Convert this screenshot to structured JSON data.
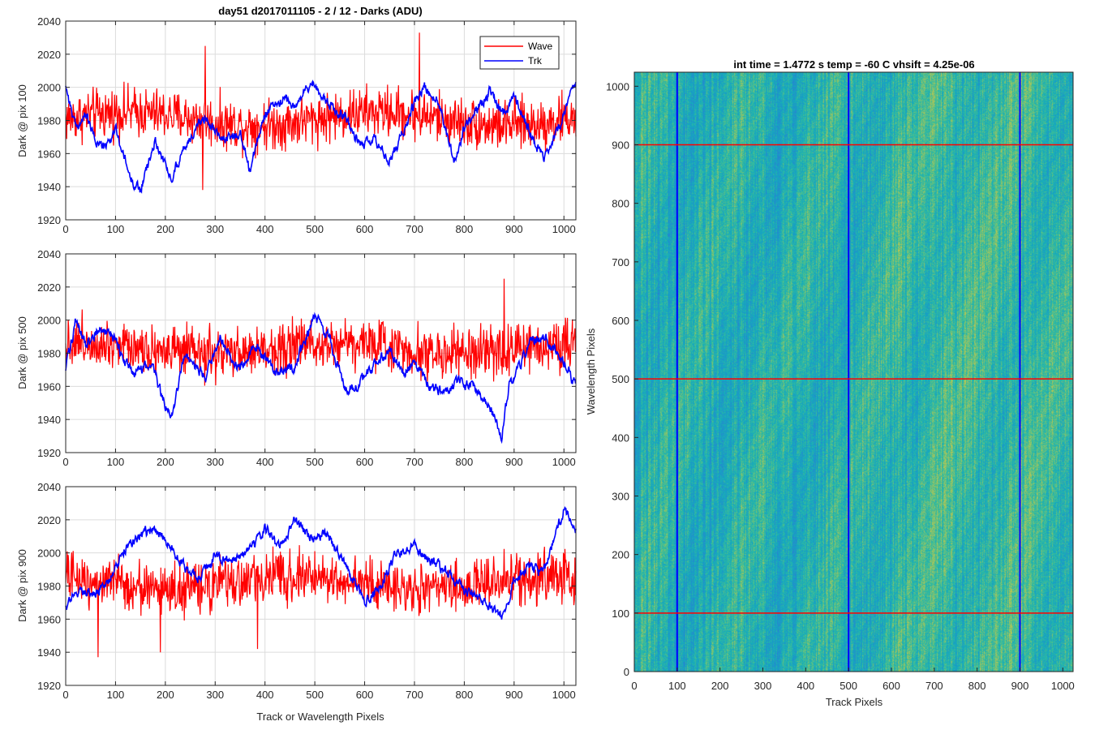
{
  "chart_data": [
    {
      "type": "line",
      "title": "day51 d2017011105 - 2 / 12 - Darks (ADU)",
      "ylabel": "Dark @ pix 100",
      "xlabel": "",
      "xlim": [
        0,
        1024
      ],
      "ylim": [
        1920,
        2040
      ],
      "xticks": [
        0,
        100,
        200,
        300,
        400,
        500,
        600,
        700,
        800,
        900,
        1000
      ],
      "yticks": [
        1920,
        1940,
        1960,
        1980,
        2000,
        2020,
        2040
      ],
      "grid": true,
      "legend": {
        "placement": "top-right",
        "entries": [
          "Wave",
          "Trk"
        ]
      },
      "series": [
        {
          "name": "Wave",
          "color": "#ff0000",
          "mean": 1981,
          "noise": 12,
          "min": 1938,
          "max": 2033,
          "note_points": [
            [
              280,
              2025
            ],
            [
              710,
              2033
            ],
            [
              275,
              1938
            ]
          ]
        },
        {
          "name": "Trk",
          "color": "#0000ff",
          "x": [
            0,
            20,
            40,
            60,
            80,
            100,
            130,
            150,
            180,
            210,
            240,
            280,
            320,
            350,
            370,
            400,
            440,
            460,
            480,
            500,
            520,
            560,
            590,
            620,
            650,
            680,
            700,
            720,
            750,
            780,
            800,
            820,
            850,
            880,
            900,
            930,
            960,
            990,
            1010,
            1024
          ],
          "values": [
            2002,
            1975,
            1983,
            1968,
            1963,
            1975,
            1945,
            1938,
            1968,
            1945,
            1965,
            1983,
            1968,
            1972,
            1950,
            1985,
            1993,
            1988,
            1998,
            2003,
            1992,
            1983,
            1965,
            1968,
            1955,
            1975,
            1990,
            2000,
            1990,
            1955,
            1975,
            1985,
            1997,
            1985,
            1995,
            1975,
            1955,
            1975,
            1995,
            2000
          ]
        }
      ]
    },
    {
      "type": "line",
      "title": "",
      "ylabel": "Dark @ pix 500",
      "xlabel": "",
      "xlim": [
        0,
        1024
      ],
      "ylim": [
        1920,
        2040
      ],
      "xticks": [
        0,
        100,
        200,
        300,
        400,
        500,
        600,
        700,
        800,
        900,
        1000
      ],
      "yticks": [
        1920,
        1940,
        1960,
        1980,
        2000,
        2020,
        2040
      ],
      "grid": true,
      "series": [
        {
          "name": "Wave",
          "color": "#ff0000",
          "mean": 1983,
          "noise": 12,
          "min": 1952,
          "max": 2025,
          "note_points": [
            [
              880,
              2025
            ]
          ]
        },
        {
          "name": "Trk",
          "color": "#0000ff",
          "x": [
            0,
            20,
            40,
            60,
            90,
            110,
            140,
            170,
            210,
            240,
            280,
            310,
            350,
            380,
            420,
            460,
            500,
            530,
            560,
            580,
            620,
            650,
            680,
            700,
            730,
            760,
            790,
            820,
            850,
            875,
            890,
            930,
            960,
            1000,
            1024
          ],
          "values": [
            1970,
            2000,
            1985,
            1993,
            1995,
            1980,
            1968,
            1975,
            1940,
            1980,
            1965,
            1990,
            1970,
            1985,
            1968,
            1972,
            2003,
            1988,
            1960,
            1958,
            1973,
            1982,
            1968,
            1975,
            1960,
            1955,
            1963,
            1960,
            1950,
            1930,
            1960,
            1985,
            1990,
            1975,
            1960
          ]
        }
      ]
    },
    {
      "type": "line",
      "title": "",
      "ylabel": "Dark @ pix 900",
      "xlabel": "Track or Wavelength Pixels",
      "xlim": [
        0,
        1024
      ],
      "ylim": [
        1920,
        2040
      ],
      "xticks": [
        0,
        100,
        200,
        300,
        400,
        500,
        600,
        700,
        800,
        900,
        1000
      ],
      "yticks": [
        1920,
        1940,
        1960,
        1980,
        2000,
        2020,
        2040
      ],
      "grid": true,
      "series": [
        {
          "name": "Wave",
          "color": "#ff0000",
          "mean": 1982,
          "noise": 12,
          "min": 1937,
          "max": 2015,
          "note_points": [
            [
              65,
              1937
            ],
            [
              385,
              1942
            ],
            [
              190,
              1940
            ]
          ]
        },
        {
          "name": "Trk",
          "color": "#0000ff",
          "x": [
            0,
            30,
            60,
            90,
            120,
            150,
            180,
            210,
            240,
            270,
            300,
            330,
            360,
            380,
            400,
            430,
            460,
            480,
            500,
            520,
            560,
            600,
            630,
            660,
            700,
            730,
            760,
            800,
            830,
            850,
            880,
            900,
            930,
            960,
            980,
            1000,
            1024
          ],
          "values": [
            1968,
            1978,
            1975,
            1985,
            2003,
            2010,
            2015,
            2005,
            1990,
            1985,
            1998,
            1993,
            2000,
            2005,
            2015,
            2003,
            2020,
            2012,
            2008,
            2013,
            1993,
            1970,
            1980,
            1998,
            2005,
            1995,
            1990,
            1978,
            1975,
            1968,
            1960,
            1985,
            1992,
            1988,
            2010,
            2025,
            2015
          ]
        }
      ]
    },
    {
      "type": "heatmap",
      "title": "int time = 1.4772 s    temp = -60 C    vhsift = 4.25e-06",
      "xlabel": "Track Pixels",
      "ylabel": "Wavelength Pixels",
      "xlim": [
        0,
        1024
      ],
      "ylim": [
        0,
        1024
      ],
      "xticks": [
        0,
        100,
        200,
        300,
        400,
        500,
        600,
        700,
        800,
        900,
        1000
      ],
      "yticks": [
        0,
        100,
        200,
        300,
        400,
        500,
        600,
        700,
        800,
        900,
        1000
      ],
      "colormap": "parula",
      "markers": {
        "vertical_lines": {
          "x": [
            100,
            500,
            900
          ],
          "color": "#0000ff"
        },
        "horizontal_lines": {
          "y": [
            100,
            500,
            900
          ],
          "color": "#ff0000"
        }
      }
    }
  ]
}
